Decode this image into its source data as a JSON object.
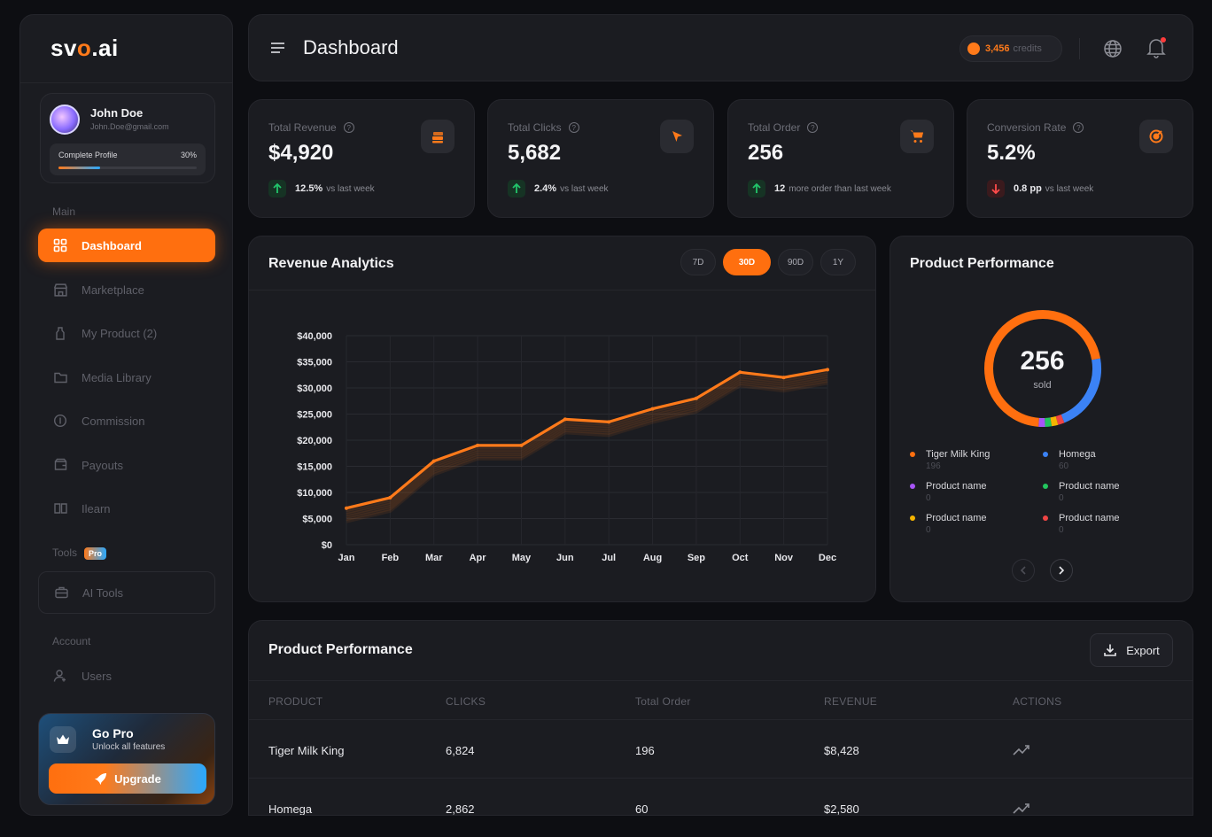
{
  "brand": {
    "logo_prefix": "sv",
    "logo_o": "o",
    "logo_suffix": ".ai"
  },
  "user": {
    "name": "John Doe",
    "email": "John.Doe@gmail.com",
    "profile_label": "Complete Profile",
    "profile_percent_label": "30%",
    "profile_progress": 0.3
  },
  "sidebar": {
    "section_main": "Main",
    "items": [
      {
        "label": "Dashboard",
        "icon": "grid-icon"
      },
      {
        "label": "Marketplace",
        "icon": "store-icon"
      },
      {
        "label": "My Product (2)",
        "icon": "bottle-icon"
      },
      {
        "label": "Media Library",
        "icon": "folder-icon"
      },
      {
        "label": "Commission",
        "icon": "coin-icon"
      },
      {
        "label": "Payouts",
        "icon": "wallet-icon"
      },
      {
        "label": "Ilearn",
        "icon": "book-icon"
      }
    ],
    "section_tools": "Tools",
    "pro_badge": "Pro",
    "tools_item": {
      "label": "AI Tools",
      "icon": "briefcase-icon"
    },
    "section_account": "Account",
    "account_item": {
      "label": "Users",
      "icon": "user-icon"
    }
  },
  "gopro": {
    "title": "Go Pro",
    "subtitle": "Unlock all features",
    "button": "Upgrade"
  },
  "header": {
    "title": "Dashboard",
    "credits_value": "3,456",
    "credits_unit": "credits"
  },
  "stats": [
    {
      "title": "Total Revenue",
      "value": "$4,920",
      "delta": "12.5%",
      "delta_text": "vs last week",
      "direction": "up",
      "icon": "stack-icon"
    },
    {
      "title": "Total Clicks",
      "value": "5,682",
      "delta": "2.4%",
      "delta_text": "vs last week",
      "direction": "up",
      "icon": "cursor-icon"
    },
    {
      "title": "Total Order",
      "value": "256",
      "delta": "12",
      "delta_text": "more order than last week",
      "direction": "up",
      "icon": "cart-icon"
    },
    {
      "title": "Conversion Rate",
      "value": "5.2%",
      "delta": "0.8 pp",
      "delta_text": "vs last week",
      "direction": "down",
      "icon": "target-icon"
    }
  ],
  "revenue": {
    "title": "Revenue Analytics",
    "ranges": [
      "7D",
      "30D",
      "90D",
      "1Y"
    ],
    "active_range": "30D"
  },
  "chart_data": {
    "type": "line",
    "categories": [
      "Jan",
      "Feb",
      "Mar",
      "Apr",
      "May",
      "Jun",
      "Jul",
      "Aug",
      "Sep",
      "Oct",
      "Nov",
      "Dec"
    ],
    "values": [
      7000,
      9000,
      16000,
      19000,
      19000,
      24000,
      23500,
      26000,
      28000,
      33000,
      32000,
      33500
    ],
    "y_ticks": [
      "$0",
      "$5,000",
      "$10,000",
      "$15,000",
      "$20,000",
      "$25,000",
      "$30,000",
      "$35,000",
      "$40,000"
    ],
    "ylim": [
      0,
      40000
    ],
    "grid": true,
    "color": "#ff7a1a"
  },
  "performance": {
    "title": "Product Performance",
    "total": "256",
    "total_label": "sold",
    "segments": [
      {
        "name": "Tiger Milk King",
        "value": 196,
        "color": "#ff6f0f"
      },
      {
        "name": "Homega",
        "value": 60,
        "color": "#3b82f6"
      },
      {
        "name": "Product name",
        "value": 0,
        "color": "#a855f7"
      },
      {
        "name": "Product name",
        "value": 0,
        "color": "#22c55e"
      },
      {
        "name": "Product name",
        "value": 0,
        "color": "#f5b400"
      },
      {
        "name": "Product name",
        "value": 0,
        "color": "#ef4444"
      }
    ]
  },
  "table": {
    "title": "Product Performance",
    "export_label": "Export",
    "columns": [
      "PRODUCT",
      "CLICKS",
      "Total Order",
      "REVENUE",
      "ACTIONS"
    ],
    "rows": [
      [
        "Tiger Milk King",
        "6,824",
        "196",
        "$8,428"
      ],
      [
        "Homega",
        "2,862",
        "60",
        "$2,580"
      ]
    ]
  }
}
